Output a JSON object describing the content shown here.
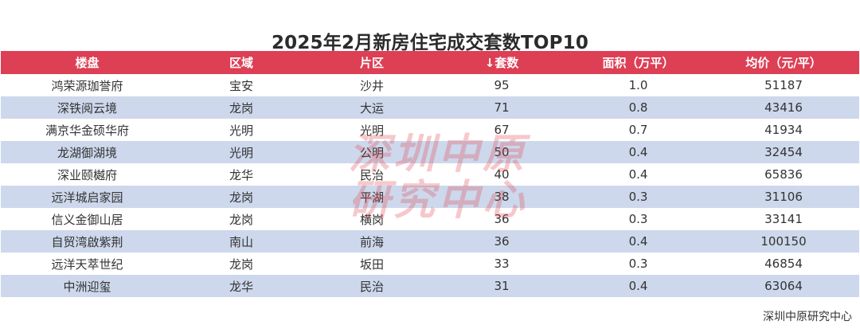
{
  "chart_data": {
    "type": "table",
    "title": "2025年2月新房住宅成交套数TOP10",
    "columns": [
      "楼盘",
      "区域",
      "片区",
      "↓套数",
      "面积（万平）",
      "均价（元/平）"
    ],
    "rows": [
      [
        "鸿荣源珈誉府",
        "宝安",
        "沙井",
        "95",
        "1.0",
        "51187"
      ],
      [
        "深铁阅云境",
        "龙岗",
        "大运",
        "71",
        "0.8",
        "43416"
      ],
      [
        "满京华金硕华府",
        "光明",
        "光明",
        "67",
        "0.7",
        "41934"
      ],
      [
        "龙湖御湖境",
        "光明",
        "公明",
        "50",
        "0.4",
        "32454"
      ],
      [
        "深业颐樾府",
        "龙华",
        "民治",
        "40",
        "0.4",
        "65836"
      ],
      [
        "远洋城启家园",
        "龙岗",
        "平湖",
        "38",
        "0.3",
        "31106"
      ],
      [
        "信义金御山居",
        "龙岗",
        "横岗",
        "36",
        "0.3",
        "33141"
      ],
      [
        "自贸湾啟紫荆",
        "南山",
        "前海",
        "36",
        "0.4",
        "100150"
      ],
      [
        "远洋天萃世纪",
        "龙岗",
        "坂田",
        "33",
        "0.3",
        "46854"
      ],
      [
        "中洲迎玺",
        "龙华",
        "民治",
        "31",
        "0.4",
        "63064"
      ]
    ],
    "sorted_by": "套数",
    "sort_order": "descending"
  },
  "watermark": [
    "深圳中原",
    "研究中心"
  ],
  "source": "深圳中原研究中心",
  "colors": {
    "header_bg": "#dd3f55",
    "header_text": "#ffffff",
    "row_alt_bg": "#cdd8ec",
    "row_bg": "#ffffff",
    "watermark": "#e24854"
  }
}
